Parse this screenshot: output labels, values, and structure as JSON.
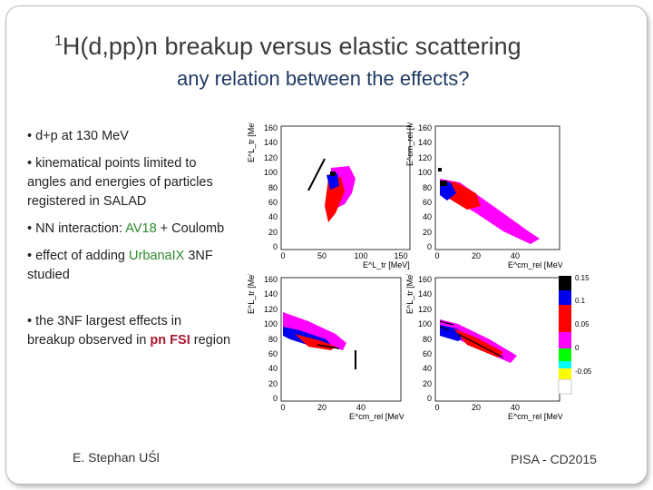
{
  "slide": {
    "title_sup": "1",
    "title_rest": "H(d,pp)n  breakup versus   elastic scattering",
    "subtitle": "any relation between the effects?"
  },
  "bullets": {
    "b1": "• d+p at 130 MeV",
    "b2": "• kinematical points limited to angles and energies of particles registered in SALAD",
    "b3_pre": "• NN interaction:  ",
    "b3_hl": "AV18",
    "b3_post": " + Coulomb",
    "b4_pre": "• effect of adding  ",
    "b4_hl": "UrbanaIX",
    "b4_post": " 3NF studied",
    "b5_pre": "• the 3NF largest effects in breakup observed in  ",
    "b5_hl": "pn FSI",
    "b5_post": " region"
  },
  "footer": {
    "author": "E. Stephan UŚl",
    "event": "PISA -  CD2015"
  },
  "plots": {
    "top_left": {
      "ylabel": "E^L_tr [MeV]",
      "xlabel": "E^L_tr [MeV]",
      "yticks": [
        "160",
        "140",
        "120",
        "100",
        "80",
        "60",
        "40",
        "20",
        "0"
      ],
      "xticks": [
        "0",
        "50",
        "100",
        "150"
      ]
    },
    "top_right": {
      "ylabel": "E^cm_rel [MeV]",
      "xlabel": "E^cm_rel [MeV]",
      "yticks": [
        "160",
        "140",
        "120",
        "100",
        "80",
        "60",
        "40",
        "20",
        "0"
      ],
      "xticks": [
        "0",
        "20",
        "40"
      ]
    },
    "bottom_left": {
      "ylabel": "E^L_tr [MeV]",
      "xlabel": "E^cm_rel [MeV]",
      "yticks": [
        "160",
        "140",
        "120",
        "100",
        "80",
        "60",
        "40",
        "20",
        "0"
      ],
      "xticks": [
        "0",
        "20",
        "40"
      ]
    },
    "bottom_right": {
      "ylabel": "E^L_tr [MeV]",
      "xlabel": "E^cm_rel [MeV]",
      "yticks": [
        "160",
        "140",
        "120",
        "100",
        "80",
        "60",
        "40",
        "20",
        "0"
      ],
      "xticks": [
        "0",
        "20",
        "40"
      ]
    },
    "colorbar": {
      "labels": [
        "0.15",
        "0.1",
        "0.05",
        "0",
        "-0.05"
      ],
      "colors": [
        "#000000",
        "#0000ee",
        "#ff0000",
        "#ff00ff",
        "#00ff00",
        "#00ffff",
        "#ffff00",
        "#ffffff"
      ]
    }
  }
}
